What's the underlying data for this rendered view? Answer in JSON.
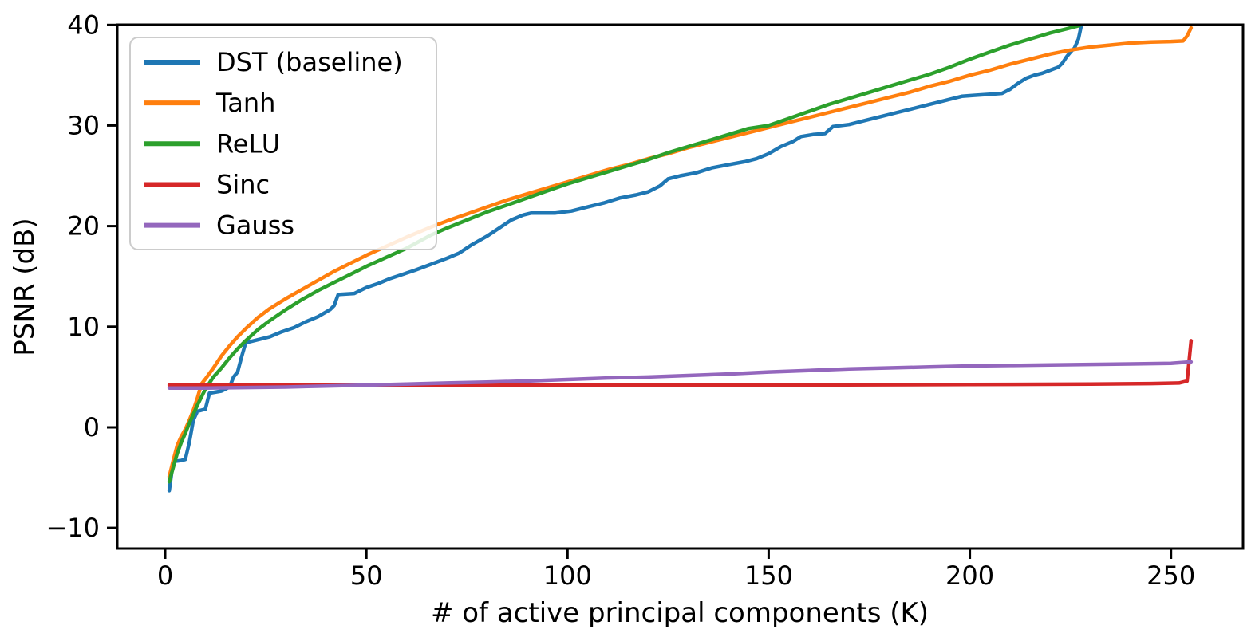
{
  "chart_data": {
    "type": "line",
    "title": "",
    "xlabel": "# of active principal components (K)",
    "ylabel": "PSNR (dB)",
    "xlim": [
      -11.9,
      267.9
    ],
    "ylim": [
      -12.05,
      40.02
    ],
    "xticks": [
      0,
      50,
      100,
      150,
      200,
      250
    ],
    "yticks": [
      -10,
      0,
      10,
      20,
      30,
      40
    ],
    "grid": false,
    "axis_color": "#000000",
    "legend": {
      "position": "upper left",
      "frame": true,
      "frame_color": "#cccccc",
      "bg_color": "rgba(255,255,255,0.85)"
    },
    "series": [
      {
        "name": "DST (baseline)",
        "color": "#1f77b4",
        "points": [
          [
            1,
            -6.3
          ],
          [
            2,
            -3.4
          ],
          [
            4,
            -3.3
          ],
          [
            5,
            -3.2
          ],
          [
            6,
            -1.5
          ],
          [
            7,
            0.7
          ],
          [
            8,
            1.6
          ],
          [
            10,
            1.8
          ],
          [
            11,
            3.4
          ],
          [
            14,
            3.6
          ],
          [
            16,
            4.0
          ],
          [
            17,
            5.0
          ],
          [
            18,
            5.5
          ],
          [
            19,
            7.0
          ],
          [
            20,
            8.4
          ],
          [
            23,
            8.7
          ],
          [
            26,
            9.0
          ],
          [
            29,
            9.5
          ],
          [
            32,
            9.9
          ],
          [
            35,
            10.5
          ],
          [
            38,
            11.0
          ],
          [
            41,
            11.7
          ],
          [
            42,
            12.1
          ],
          [
            43,
            13.2
          ],
          [
            47,
            13.3
          ],
          [
            50,
            13.9
          ],
          [
            53,
            14.3
          ],
          [
            56,
            14.8
          ],
          [
            59,
            15.2
          ],
          [
            62,
            15.6
          ],
          [
            66,
            16.2
          ],
          [
            70,
            16.8
          ],
          [
            73,
            17.3
          ],
          [
            76,
            18.1
          ],
          [
            80,
            19.0
          ],
          [
            83,
            19.8
          ],
          [
            86,
            20.6
          ],
          [
            89,
            21.1
          ],
          [
            91,
            21.3
          ],
          [
            97,
            21.3
          ],
          [
            101,
            21.5
          ],
          [
            105,
            21.9
          ],
          [
            109,
            22.3
          ],
          [
            113,
            22.8
          ],
          [
            117,
            23.1
          ],
          [
            120,
            23.4
          ],
          [
            123,
            24.0
          ],
          [
            125,
            24.7
          ],
          [
            128,
            25.0
          ],
          [
            132,
            25.3
          ],
          [
            136,
            25.8
          ],
          [
            140,
            26.1
          ],
          [
            144,
            26.4
          ],
          [
            147,
            26.7
          ],
          [
            150,
            27.2
          ],
          [
            153,
            27.9
          ],
          [
            156,
            28.4
          ],
          [
            158,
            28.9
          ],
          [
            161,
            29.1
          ],
          [
            164,
            29.2
          ],
          [
            166,
            29.9
          ],
          [
            170,
            30.1
          ],
          [
            174,
            30.5
          ],
          [
            178,
            30.9
          ],
          [
            182,
            31.3
          ],
          [
            186,
            31.7
          ],
          [
            189,
            32.0
          ],
          [
            192,
            32.3
          ],
          [
            195,
            32.6
          ],
          [
            198,
            32.9
          ],
          [
            201,
            33.0
          ],
          [
            205,
            33.1
          ],
          [
            208,
            33.2
          ],
          [
            210,
            33.6
          ],
          [
            212,
            34.2
          ],
          [
            214,
            34.7
          ],
          [
            216,
            35.0
          ],
          [
            218,
            35.2
          ],
          [
            220,
            35.5
          ],
          [
            222,
            35.8
          ],
          [
            223,
            36.2
          ],
          [
            224,
            36.8
          ],
          [
            225,
            37.3
          ],
          [
            226,
            37.7
          ],
          [
            227,
            38.6
          ],
          [
            228,
            40.5
          ]
        ]
      },
      {
        "name": "Tanh",
        "color": "#ff7f0e",
        "points": [
          [
            1,
            -4.9
          ],
          [
            2,
            -3.3
          ],
          [
            3,
            -1.8
          ],
          [
            4,
            -0.9
          ],
          [
            5,
            -0.2
          ],
          [
            6,
            0.7
          ],
          [
            7,
            1.7
          ],
          [
            8,
            2.9
          ],
          [
            9,
            4.3
          ],
          [
            10,
            4.8
          ],
          [
            12,
            5.9
          ],
          [
            14,
            7.1
          ],
          [
            16,
            8.1
          ],
          [
            18,
            9.0
          ],
          [
            20,
            9.8
          ],
          [
            23,
            10.9
          ],
          [
            26,
            11.8
          ],
          [
            30,
            12.8
          ],
          [
            34,
            13.7
          ],
          [
            38,
            14.6
          ],
          [
            42,
            15.5
          ],
          [
            46,
            16.3
          ],
          [
            50,
            17.1
          ],
          [
            55,
            18.0
          ],
          [
            60,
            18.9
          ],
          [
            66,
            19.9
          ],
          [
            70,
            20.5
          ],
          [
            75,
            21.2
          ],
          [
            80,
            21.9
          ],
          [
            85,
            22.6
          ],
          [
            90,
            23.2
          ],
          [
            95,
            23.8
          ],
          [
            100,
            24.4
          ],
          [
            105,
            25.0
          ],
          [
            110,
            25.6
          ],
          [
            115,
            26.1
          ],
          [
            120,
            26.7
          ],
          [
            125,
            27.2
          ],
          [
            130,
            27.8
          ],
          [
            135,
            28.3
          ],
          [
            140,
            28.8
          ],
          [
            145,
            29.3
          ],
          [
            150,
            29.8
          ],
          [
            155,
            30.3
          ],
          [
            160,
            30.8
          ],
          [
            165,
            31.3
          ],
          [
            170,
            31.8
          ],
          [
            175,
            32.3
          ],
          [
            180,
            32.8
          ],
          [
            185,
            33.3
          ],
          [
            190,
            33.9
          ],
          [
            195,
            34.4
          ],
          [
            200,
            35.0
          ],
          [
            205,
            35.5
          ],
          [
            210,
            36.1
          ],
          [
            215,
            36.6
          ],
          [
            220,
            37.1
          ],
          [
            225,
            37.5
          ],
          [
            230,
            37.8
          ],
          [
            235,
            38.0
          ],
          [
            240,
            38.2
          ],
          [
            245,
            38.3
          ],
          [
            250,
            38.35
          ],
          [
            253,
            38.4
          ],
          [
            254,
            38.9
          ],
          [
            255,
            39.7
          ]
        ]
      },
      {
        "name": "ReLU",
        "color": "#2ca02c",
        "points": [
          [
            1,
            -5.4
          ],
          [
            2,
            -4.0
          ],
          [
            3,
            -2.6
          ],
          [
            4,
            -1.5
          ],
          [
            5,
            -0.6
          ],
          [
            6,
            0.4
          ],
          [
            7,
            1.3
          ],
          [
            8,
            2.2
          ],
          [
            9,
            3.0
          ],
          [
            10,
            3.8
          ],
          [
            11,
            4.4
          ],
          [
            12,
            5.0
          ],
          [
            14,
            5.9
          ],
          [
            16,
            6.9
          ],
          [
            18,
            7.8
          ],
          [
            20,
            8.6
          ],
          [
            23,
            9.7
          ],
          [
            26,
            10.6
          ],
          [
            30,
            11.7
          ],
          [
            34,
            12.7
          ],
          [
            38,
            13.6
          ],
          [
            42,
            14.4
          ],
          [
            46,
            15.2
          ],
          [
            50,
            16.0
          ],
          [
            55,
            16.9
          ],
          [
            60,
            17.8
          ],
          [
            66,
            19.1
          ],
          [
            70,
            19.8
          ],
          [
            75,
            20.6
          ],
          [
            80,
            21.4
          ],
          [
            85,
            22.1
          ],
          [
            90,
            22.8
          ],
          [
            95,
            23.5
          ],
          [
            100,
            24.2
          ],
          [
            105,
            24.8
          ],
          [
            110,
            25.4
          ],
          [
            115,
            26.0
          ],
          [
            120,
            26.6
          ],
          [
            125,
            27.3
          ],
          [
            130,
            27.9
          ],
          [
            135,
            28.5
          ],
          [
            140,
            29.1
          ],
          [
            145,
            29.7
          ],
          [
            150,
            30.0
          ],
          [
            155,
            30.7
          ],
          [
            160,
            31.4
          ],
          [
            165,
            32.1
          ],
          [
            170,
            32.7
          ],
          [
            175,
            33.3
          ],
          [
            180,
            33.9
          ],
          [
            185,
            34.5
          ],
          [
            190,
            35.1
          ],
          [
            195,
            35.8
          ],
          [
            200,
            36.6
          ],
          [
            205,
            37.3
          ],
          [
            210,
            38.0
          ],
          [
            215,
            38.6
          ],
          [
            220,
            39.2
          ],
          [
            224,
            39.6
          ],
          [
            227,
            39.9
          ],
          [
            229,
            40.3
          ]
        ]
      },
      {
        "name": "Sinc",
        "color": "#d62728",
        "points": [
          [
            1,
            4.2
          ],
          [
            50,
            4.2
          ],
          [
            100,
            4.2
          ],
          [
            150,
            4.2
          ],
          [
            200,
            4.25
          ],
          [
            230,
            4.3
          ],
          [
            245,
            4.35
          ],
          [
            252,
            4.4
          ],
          [
            254,
            4.6
          ],
          [
            255,
            8.6
          ]
        ]
      },
      {
        "name": "Gauss",
        "color": "#9467bd",
        "points": [
          [
            1,
            3.9
          ],
          [
            10,
            3.9
          ],
          [
            20,
            3.95
          ],
          [
            30,
            4.0
          ],
          [
            40,
            4.1
          ],
          [
            50,
            4.2
          ],
          [
            60,
            4.3
          ],
          [
            70,
            4.4
          ],
          [
            80,
            4.5
          ],
          [
            90,
            4.6
          ],
          [
            100,
            4.75
          ],
          [
            110,
            4.9
          ],
          [
            120,
            5.0
          ],
          [
            130,
            5.15
          ],
          [
            140,
            5.3
          ],
          [
            150,
            5.5
          ],
          [
            160,
            5.65
          ],
          [
            170,
            5.8
          ],
          [
            180,
            5.9
          ],
          [
            190,
            6.0
          ],
          [
            200,
            6.1
          ],
          [
            210,
            6.15
          ],
          [
            220,
            6.2
          ],
          [
            230,
            6.25
          ],
          [
            240,
            6.3
          ],
          [
            250,
            6.35
          ],
          [
            255,
            6.5
          ]
        ]
      }
    ]
  }
}
